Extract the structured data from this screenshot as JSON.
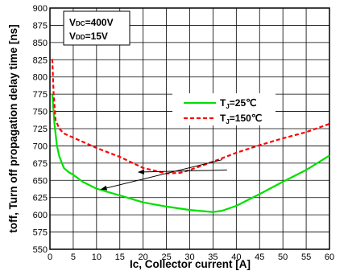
{
  "chart_data": {
    "type": "line",
    "xlabel": "Ic, Collector current [A]",
    "ylabel": "toff, Turn off propagation delay time [ns]",
    "xlim": [
      0,
      60
    ],
    "ylim": [
      550,
      900
    ],
    "xticks": [
      0,
      5,
      10,
      15,
      20,
      25,
      30,
      35,
      40,
      45,
      50,
      55,
      60
    ],
    "yticks": [
      550,
      575,
      600,
      625,
      650,
      675,
      700,
      725,
      750,
      775,
      800,
      825,
      850,
      875,
      900
    ],
    "grid": true,
    "conditions": {
      "vdc": {
        "main": "V",
        "sub": "DC",
        "value": "=400V"
      },
      "vdd": {
        "main": "V",
        "sub": "DD",
        "value": "=15V"
      }
    },
    "legend_position": "upper-right inside plot",
    "series": [
      {
        "name": "TJ=25℃",
        "label_main": "T",
        "label_sub": "J",
        "label_value": "=25℃",
        "color": "#00e000",
        "style": "solid",
        "x": [
          0.5,
          1,
          1.5,
          2,
          3,
          4,
          5,
          7,
          10,
          15,
          20,
          25,
          30,
          35,
          37,
          40,
          45,
          50,
          55,
          60
        ],
        "y": [
          775,
          730,
          700,
          685,
          668,
          662,
          658,
          648,
          638,
          628,
          618,
          612,
          607,
          604,
          606,
          613,
          630,
          648,
          665,
          686
        ]
      },
      {
        "name": "TJ=150℃",
        "label_main": "T",
        "label_sub": "J",
        "label_value": "=150℃",
        "color": "#ff0000",
        "style": "dashed",
        "x": [
          0.5,
          0.8,
          1.2,
          2,
          3,
          5,
          10,
          15,
          20,
          25,
          28,
          30,
          35,
          40,
          45,
          50,
          55,
          60
        ],
        "y": [
          826,
          775,
          738,
          725,
          718,
          712,
          697,
          684,
          668,
          660,
          661,
          665,
          677,
          690,
          701,
          711,
          720,
          732
        ]
      }
    ],
    "annotations": [
      {
        "from": [
          37,
          680
        ],
        "to": [
          11,
          637
        ],
        "target_series": "TJ=25℃"
      },
      {
        "from": [
          38,
          665
        ],
        "to": [
          19,
          662
        ],
        "target_series": "TJ=150℃"
      }
    ]
  }
}
